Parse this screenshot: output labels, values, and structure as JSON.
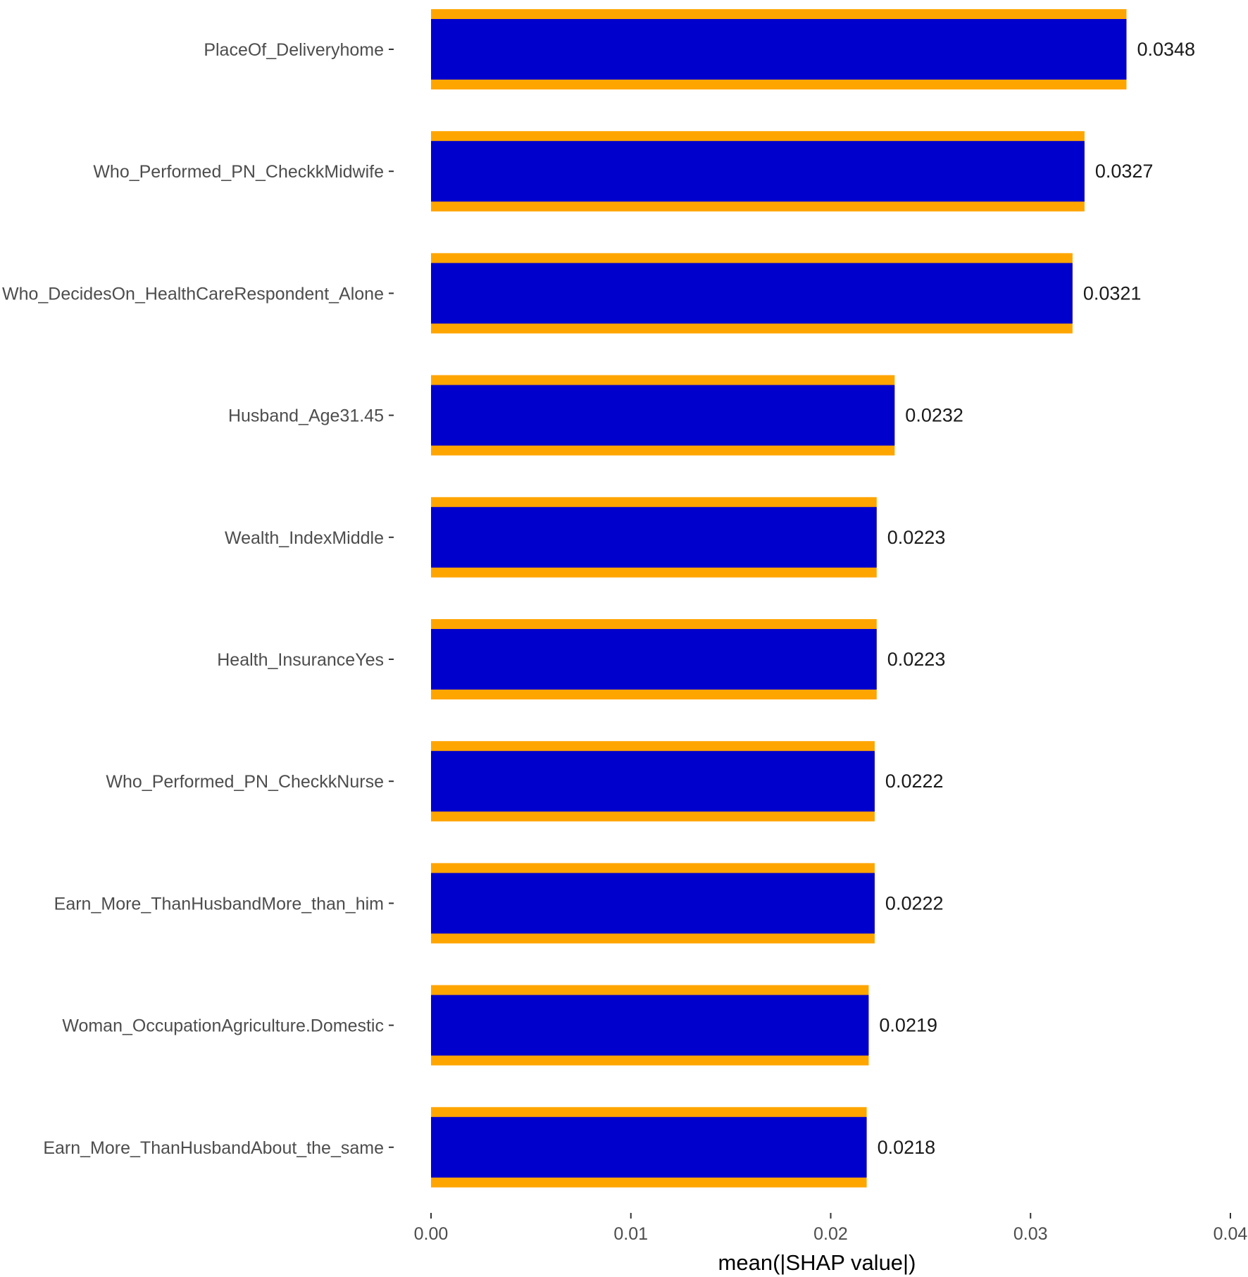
{
  "chart_data": {
    "type": "bar",
    "orientation": "horizontal",
    "title": "",
    "xlabel": "mean(|SHAP value|)",
    "ylabel": "",
    "xlim": [
      0,
      0.04
    ],
    "xticks": [
      0,
      0.01,
      0.02,
      0.03,
      0.04
    ],
    "xtick_labels": [
      "0.00",
      "0.01",
      "0.02",
      "0.03",
      "0.04"
    ],
    "grid": false,
    "colors": {
      "bar_fill": "#0000CC",
      "bar_outline": "#FFA500",
      "label_text": "#4d4d4d",
      "value_text": "#1a1a1a"
    },
    "categories": [
      "PlaceOf_Deliveryhome",
      "Who_Performed_PN_CheckkMidwife",
      "Who_DecidesOn_HealthCareRespondent_Alone",
      "Husband_Age31.45",
      "Wealth_IndexMiddle",
      "Health_InsuranceYes",
      "Who_Performed_PN_CheckkNurse",
      "Earn_More_ThanHusbandMore_than_him",
      "Woman_OccupationAgriculture.Domestic",
      "Earn_More_ThanHusbandAbout_the_same"
    ],
    "values": [
      0.0348,
      0.0327,
      0.0321,
      0.0232,
      0.0223,
      0.0223,
      0.0222,
      0.0222,
      0.0219,
      0.0218
    ],
    "value_labels": [
      "0.0348",
      "0.0327",
      "0.0321",
      "0.0232",
      "0.0223",
      "0.0223",
      "0.0222",
      "0.0222",
      "0.0219",
      "0.0218"
    ]
  }
}
